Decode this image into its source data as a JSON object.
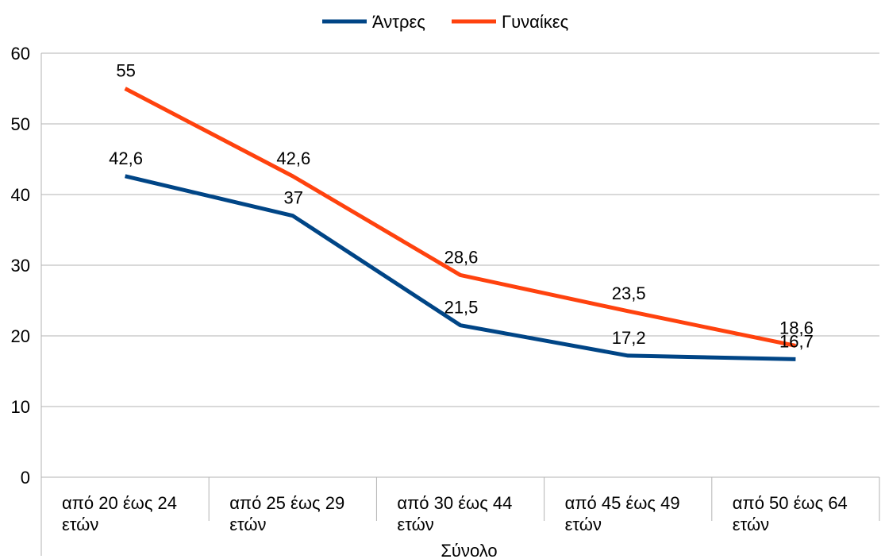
{
  "chart_data": {
    "type": "line",
    "categories": [
      [
        "από 20 έως 24",
        "ετών"
      ],
      [
        "από 25 έως 29",
        "ετών"
      ],
      [
        "από 30 έως 44",
        "ετών"
      ],
      [
        "από 45 έως 49",
        "ετών"
      ],
      [
        "από 50 έως 64",
        "ετών"
      ]
    ],
    "series": [
      {
        "name": "Άντρες",
        "color": "#004586",
        "values": [
          42.6,
          37,
          21.5,
          17.2,
          16.7
        ],
        "labels": [
          "42,6",
          "37",
          "21,5",
          "17,2",
          "16,7"
        ]
      },
      {
        "name": "Γυναίκες",
        "color": "#ff420e",
        "values": [
          55,
          42.6,
          28.6,
          23.5,
          18.6
        ],
        "labels": [
          "55",
          "42,6",
          "28,6",
          "23,5",
          "18,6"
        ]
      }
    ],
    "ylim": [
      0,
      60
    ],
    "yticks": [
      0,
      10,
      20,
      30,
      40,
      50,
      60
    ],
    "xlabel": "Σύνολο",
    "ylabel": "",
    "grid": true,
    "legend_position": "top"
  }
}
